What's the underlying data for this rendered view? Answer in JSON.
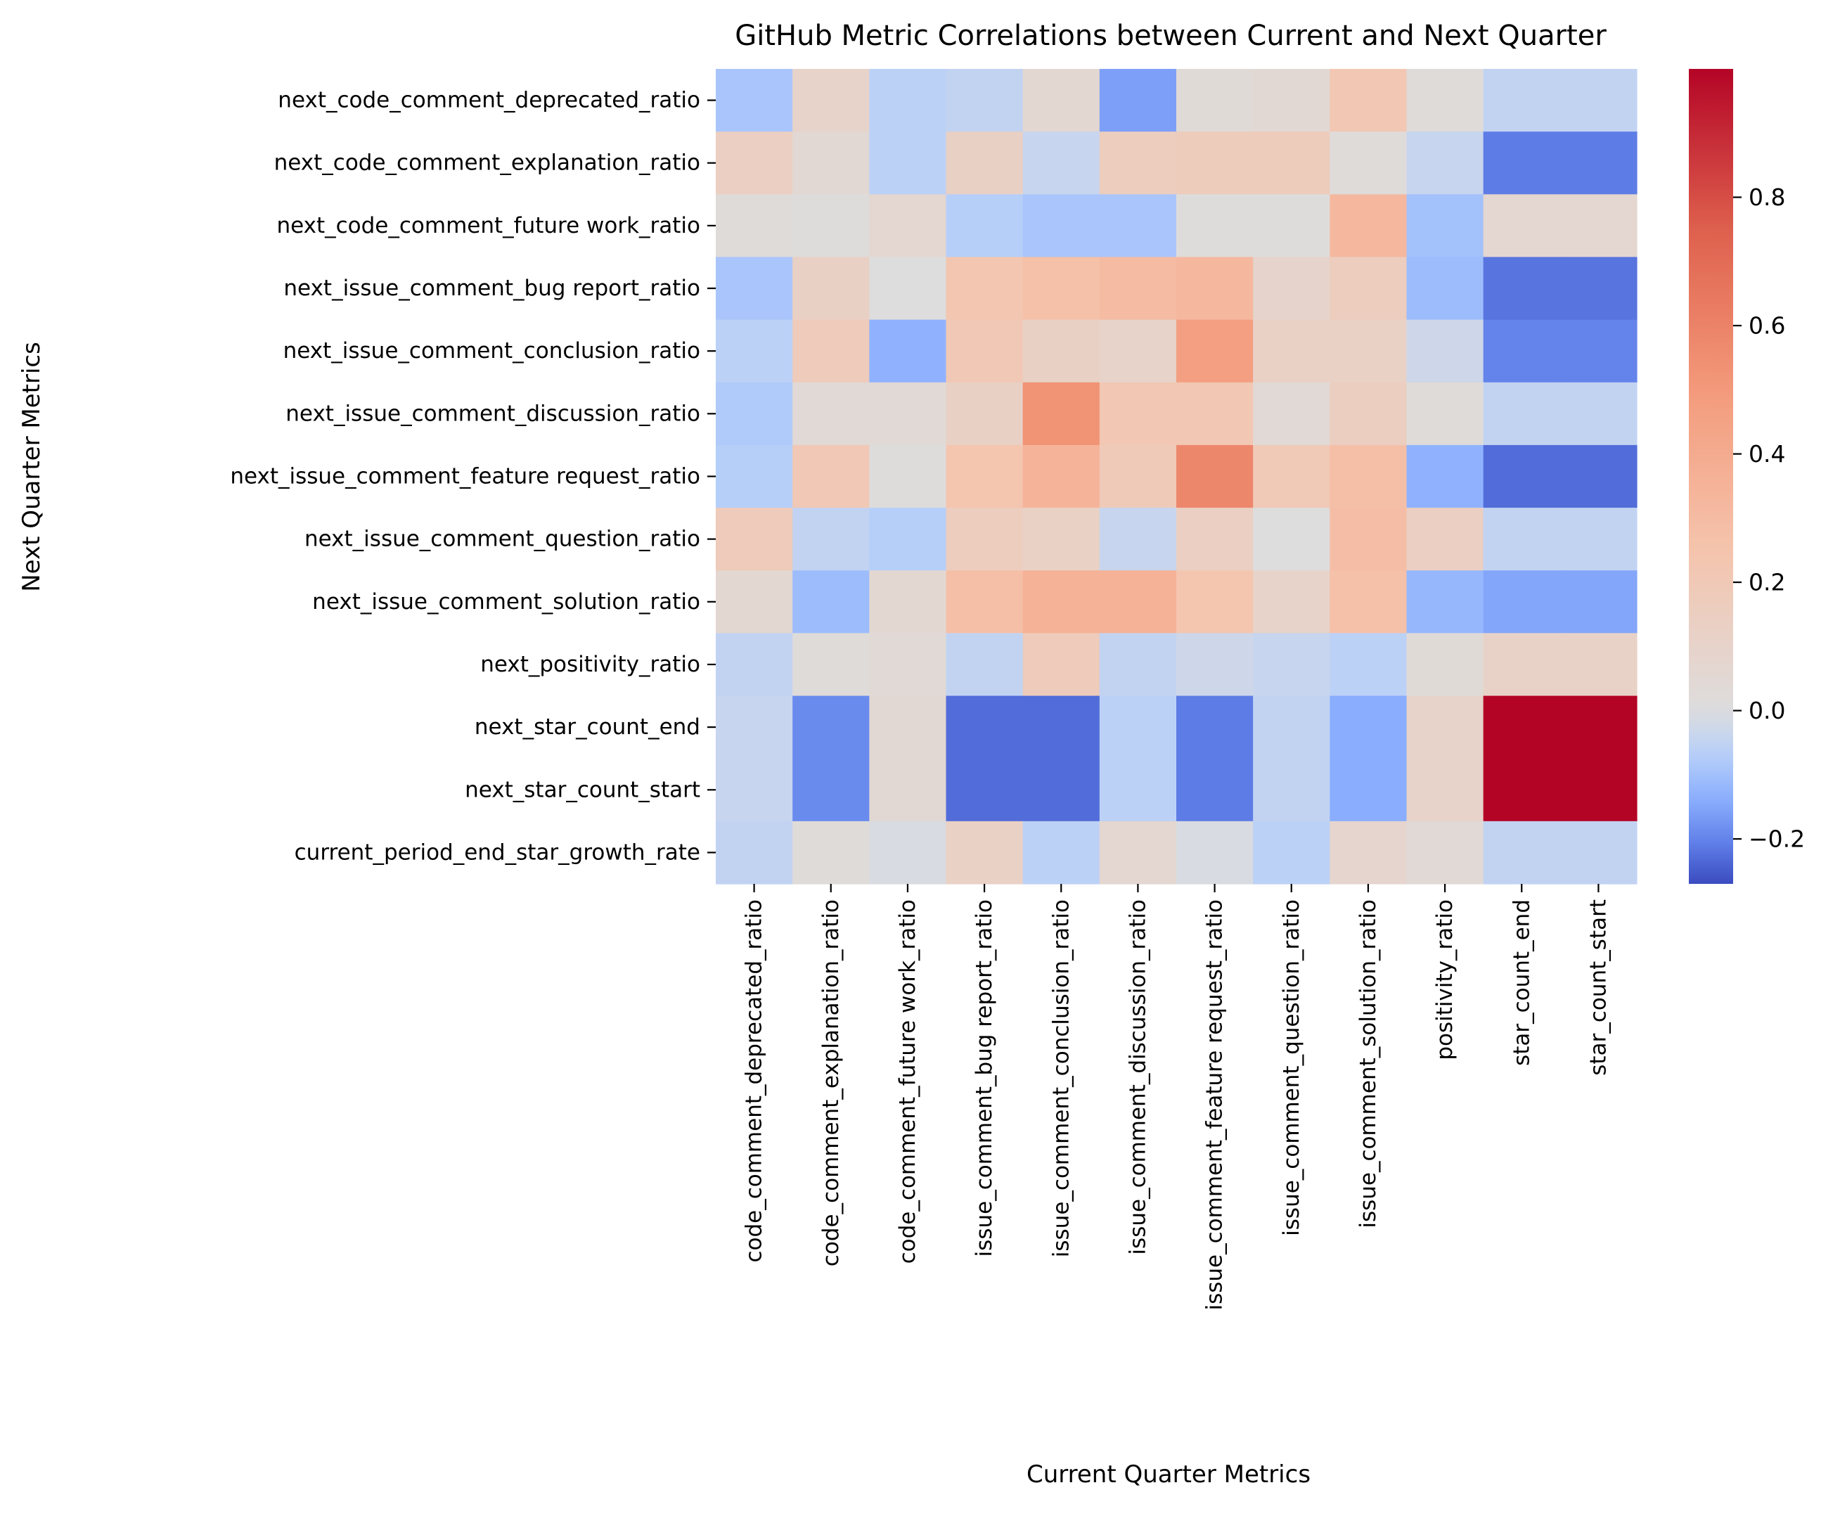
{
  "chart_data": {
    "type": "heatmap",
    "title": "GitHub Metric Correlations between Current and Next Quarter",
    "xlabel": "Current Quarter Metrics",
    "ylabel": "Next Quarter Metrics",
    "colormap": "coolwarm",
    "color_range": [
      -0.27,
      1.0
    ],
    "colorbar_ticks": [
      -0.2,
      0.0,
      0.2,
      0.4,
      0.6,
      0.8
    ],
    "colorbar_tick_labels": [
      "−0.2",
      "0.0",
      "0.2",
      "0.4",
      "0.6",
      "0.8"
    ],
    "grid": false,
    "x_categories": [
      "code_comment_deprecated_ratio",
      "code_comment_explanation_ratio",
      "code_comment_future work_ratio",
      "issue_comment_bug report_ratio",
      "issue_comment_conclusion_ratio",
      "issue_comment_discussion_ratio",
      "issue_comment_feature request_ratio",
      "issue_comment_question_ratio",
      "issue_comment_solution_ratio",
      "positivity_ratio",
      "star_count_end",
      "star_count_start"
    ],
    "y_categories": [
      "next_code_comment_deprecated_ratio",
      "next_code_comment_explanation_ratio",
      "next_code_comment_future work_ratio",
      "next_issue_comment_bug report_ratio",
      "next_issue_comment_conclusion_ratio",
      "next_issue_comment_discussion_ratio",
      "next_issue_comment_feature request_ratio",
      "next_issue_comment_question_ratio",
      "next_issue_comment_solution_ratio",
      "next_positivity_ratio",
      "next_star_count_end",
      "next_star_count_start",
      "current_period_end_star_growth_rate"
    ],
    "values": [
      [
        -0.09,
        0.1,
        -0.06,
        -0.05,
        0.06,
        -0.16,
        0.03,
        0.05,
        0.22,
        0.02,
        -0.05,
        -0.05
      ],
      [
        0.14,
        0.05,
        -0.06,
        0.13,
        -0.04,
        0.16,
        0.17,
        0.17,
        0.02,
        -0.04,
        -0.21,
        -0.21
      ],
      [
        0.02,
        0.01,
        0.07,
        -0.07,
        -0.09,
        -0.09,
        0.01,
        0.01,
        0.32,
        -0.1,
        0.07,
        0.07
      ],
      [
        -0.09,
        0.13,
        0.0,
        0.23,
        0.27,
        0.3,
        0.32,
        0.09,
        0.16,
        -0.11,
        -0.22,
        -0.22
      ],
      [
        -0.06,
        0.18,
        -0.13,
        0.21,
        0.13,
        0.1,
        0.47,
        0.12,
        0.12,
        -0.03,
        -0.2,
        -0.2
      ],
      [
        -0.08,
        0.04,
        0.04,
        0.13,
        0.53,
        0.22,
        0.22,
        0.04,
        0.15,
        0.02,
        -0.05,
        -0.05
      ],
      [
        -0.07,
        0.21,
        0.01,
        0.24,
        0.35,
        0.19,
        0.58,
        0.2,
        0.28,
        -0.13,
        -0.23,
        -0.23
      ],
      [
        0.18,
        -0.05,
        -0.07,
        0.16,
        0.12,
        -0.04,
        0.14,
        0.0,
        0.29,
        0.14,
        -0.05,
        -0.05
      ],
      [
        0.06,
        -0.11,
        0.06,
        0.28,
        0.36,
        0.36,
        0.24,
        0.1,
        0.27,
        -0.12,
        -0.15,
        -0.15
      ],
      [
        -0.05,
        0.02,
        0.04,
        -0.05,
        0.18,
        -0.05,
        -0.03,
        -0.04,
        -0.06,
        0.03,
        0.11,
        0.11
      ],
      [
        -0.04,
        -0.19,
        0.05,
        -0.23,
        -0.23,
        -0.06,
        -0.21,
        -0.05,
        -0.14,
        0.1,
        1.0,
        1.0
      ],
      [
        -0.04,
        -0.19,
        0.05,
        -0.23,
        -0.23,
        -0.06,
        -0.21,
        -0.05,
        -0.14,
        0.1,
        1.0,
        1.0
      ],
      [
        -0.05,
        0.02,
        -0.01,
        0.12,
        -0.06,
        0.07,
        -0.01,
        -0.06,
        0.08,
        0.04,
        -0.05,
        -0.05
      ]
    ]
  }
}
